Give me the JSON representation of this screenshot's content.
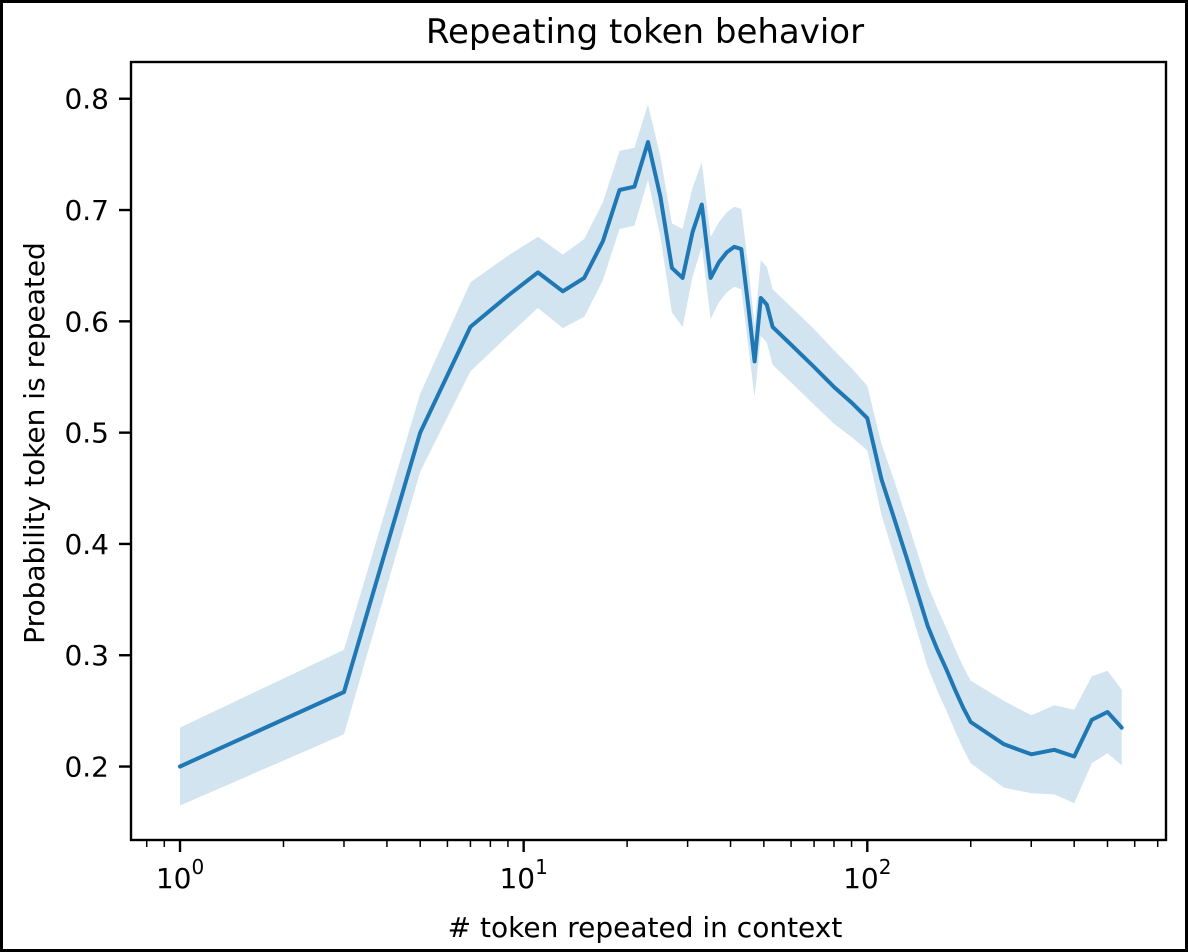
{
  "figure": {
    "title": "Repeating token behavior",
    "xlabel": "# token repeated in context",
    "ylabel": "Probability token is repeated"
  },
  "chart_data": {
    "type": "line",
    "title": "Repeating token behavior",
    "xlabel": "# token repeated in context",
    "ylabel": "Probability token is repeated",
    "x_scale": "log10",
    "xlim": [
      0.72,
      740
    ],
    "ylim": [
      0.134,
      0.833
    ],
    "grid": false,
    "legend_position": "none",
    "line_color": "#1f77b4",
    "band_color": "#1f77b4",
    "band_opacity": 0.2,
    "x_major_ticks": [
      {
        "value": 1,
        "base": "10",
        "exponent": "0"
      },
      {
        "value": 10,
        "base": "10",
        "exponent": "1"
      },
      {
        "value": 100,
        "base": "10",
        "exponent": "2"
      }
    ],
    "y_ticks": [
      {
        "value": 0.8,
        "label": "0.8"
      },
      {
        "value": 0.7,
        "label": "0.7"
      },
      {
        "value": 0.6,
        "label": "0.6"
      },
      {
        "value": 0.5,
        "label": "0.5"
      },
      {
        "value": 0.4,
        "label": "0.4"
      },
      {
        "value": 0.3,
        "label": "0.3"
      },
      {
        "value": 0.2,
        "label": "0.2"
      }
    ],
    "series": [
      {
        "name": "probability-token-repeated",
        "x": [
          1,
          3,
          5,
          7,
          9,
          11,
          13,
          15,
          17,
          19,
          21,
          23,
          25,
          27,
          29,
          31,
          33,
          35,
          37,
          39,
          41,
          43,
          45,
          47,
          49,
          51,
          53,
          60,
          70,
          80,
          90,
          100,
          110,
          120,
          130,
          140,
          150,
          160,
          170,
          180,
          190,
          200,
          250,
          300,
          350,
          400,
          450,
          500,
          550
        ],
        "y": [
          0.2,
          0.267,
          0.5,
          0.595,
          0.623,
          0.644,
          0.627,
          0.639,
          0.672,
          0.718,
          0.721,
          0.761,
          0.712,
          0.648,
          0.639,
          0.68,
          0.705,
          0.639,
          0.653,
          0.662,
          0.667,
          0.665,
          0.615,
          0.564,
          0.621,
          0.615,
          0.595,
          0.579,
          0.559,
          0.541,
          0.527,
          0.513,
          0.458,
          0.422,
          0.388,
          0.356,
          0.326,
          0.305,
          0.287,
          0.269,
          0.253,
          0.24,
          0.22,
          0.211,
          0.215,
          0.209,
          0.242,
          0.249,
          0.235
        ],
        "y_err": [
          0.035,
          0.038,
          0.035,
          0.04,
          0.036,
          0.032,
          0.033,
          0.035,
          0.035,
          0.035,
          0.035,
          0.034,
          0.036,
          0.04,
          0.044,
          0.04,
          0.038,
          0.037,
          0.036,
          0.036,
          0.036,
          0.036,
          0.036,
          0.032,
          0.034,
          0.034,
          0.034,
          0.034,
          0.034,
          0.033,
          0.031,
          0.029,
          0.032,
          0.034,
          0.035,
          0.036,
          0.037,
          0.037,
          0.037,
          0.037,
          0.037,
          0.037,
          0.039,
          0.035,
          0.04,
          0.042,
          0.039,
          0.037,
          0.034
        ]
      }
    ]
  }
}
